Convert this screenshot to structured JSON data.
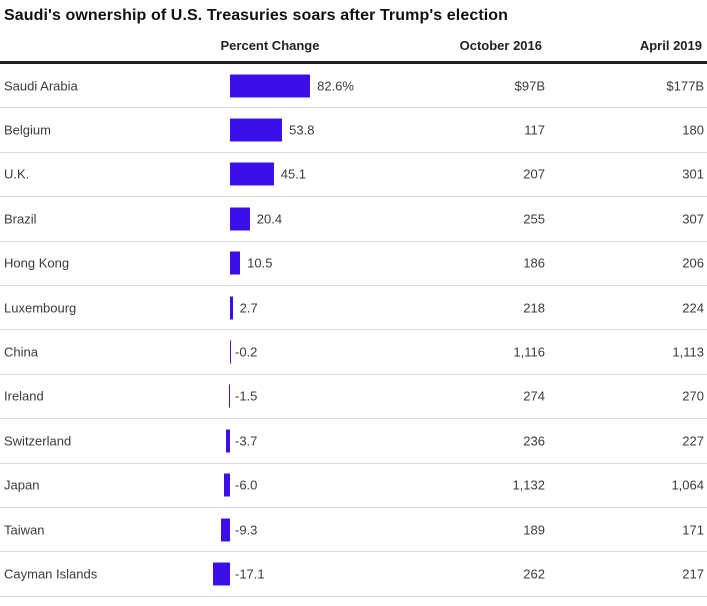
{
  "title": "Saudi's ownership of U.S. Treasuries soars after Trump's election",
  "columns": {
    "percent_change": "Percent Change",
    "october_2016": "October 2016",
    "april_2019": "April 2019"
  },
  "colors": {
    "bar": "#3b10e8",
    "thick_rule": "#1f1f1f",
    "row_rule": "#dcdcdc",
    "title_text": "#111111",
    "body_text": "#3b3b3b"
  },
  "rows": [
    {
      "country": "Saudi Arabia",
      "pct": 82.6,
      "pct_label": "82.6%",
      "oct": "$97B",
      "apr": "$177B"
    },
    {
      "country": "Belgium",
      "pct": 53.8,
      "pct_label": "53.8",
      "oct": "117",
      "apr": "180"
    },
    {
      "country": "U.K.",
      "pct": 45.1,
      "pct_label": "45.1",
      "oct": "207",
      "apr": "301"
    },
    {
      "country": "Brazil",
      "pct": 20.4,
      "pct_label": "20.4",
      "oct": "255",
      "apr": "307"
    },
    {
      "country": "Hong Kong",
      "pct": 10.5,
      "pct_label": "10.5",
      "oct": "186",
      "apr": "206"
    },
    {
      "country": "Luxembourg",
      "pct": 2.7,
      "pct_label": "2.7",
      "oct": "218",
      "apr": "224"
    },
    {
      "country": "China",
      "pct": -0.2,
      "pct_label": "-0.2",
      "oct": "1,116",
      "apr": "1,113"
    },
    {
      "country": "Ireland",
      "pct": -1.5,
      "pct_label": "-1.5",
      "oct": "274",
      "apr": "270"
    },
    {
      "country": "Switzerland",
      "pct": -3.7,
      "pct_label": "-3.7",
      "oct": "236",
      "apr": "227"
    },
    {
      "country": "Japan",
      "pct": -6.0,
      "pct_label": "-6.0",
      "oct": "1,132",
      "apr": "1,064"
    },
    {
      "country": "Taiwan",
      "pct": -9.3,
      "pct_label": "-9.3",
      "oct": "189",
      "apr": "171"
    },
    {
      "country": "Cayman Islands",
      "pct": -17.1,
      "pct_label": "-17.1",
      "oct": "262",
      "apr": "217"
    }
  ],
  "chart_data": {
    "type": "bar",
    "orientation": "horizontal",
    "title": "Saudi's ownership of U.S. Treasuries soars after Trump's election",
    "categories": [
      "Saudi Arabia",
      "Belgium",
      "U.K.",
      "Brazil",
      "Hong Kong",
      "Luxembourg",
      "China",
      "Ireland",
      "Switzerland",
      "Japan",
      "Taiwan",
      "Cayman Islands"
    ],
    "series": [
      {
        "name": "Percent Change",
        "values": [
          82.6,
          53.8,
          45.1,
          20.4,
          10.5,
          2.7,
          -0.2,
          -1.5,
          -3.7,
          -6.0,
          -9.3,
          -17.1
        ]
      },
      {
        "name": "October 2016 ($B)",
        "values": [
          97,
          117,
          207,
          255,
          186,
          218,
          1116,
          274,
          236,
          1132,
          189,
          262
        ]
      },
      {
        "name": "April 2019 ($B)",
        "values": [
          177,
          180,
          301,
          307,
          206,
          224,
          1113,
          270,
          227,
          1064,
          171,
          217
        ]
      }
    ],
    "bar_color": "#3b10e8",
    "baseline": 0,
    "grid": false,
    "legend_position": "column-headers",
    "value_labels": true
  }
}
